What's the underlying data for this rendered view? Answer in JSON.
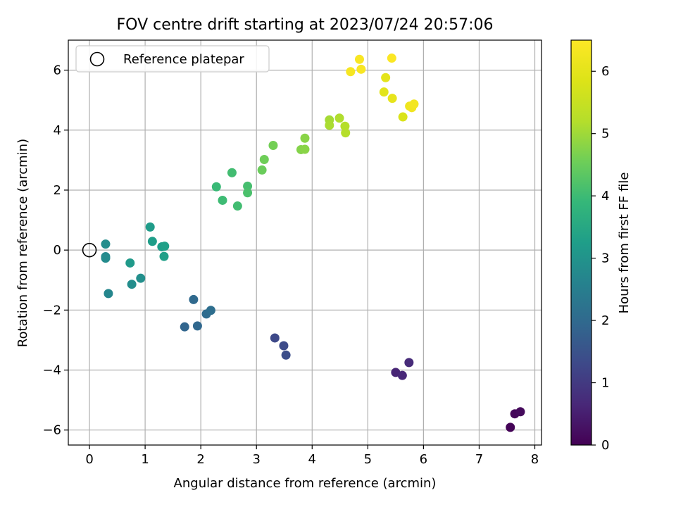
{
  "chart_data": {
    "type": "scatter",
    "title": "FOV centre drift starting at 2023/07/24 20:57:06",
    "xlabel": "Angular distance from reference (arcmin)",
    "ylabel": "Rotation from reference (arcmin)",
    "xlim": [
      -0.38,
      8.12
    ],
    "ylim": [
      -6.5,
      7.0
    ],
    "xticks": [
      0,
      1,
      2,
      3,
      4,
      5,
      6,
      7,
      8
    ],
    "yticks": [
      -6,
      -4,
      -2,
      0,
      2,
      4,
      6
    ],
    "xtick_labels": [
      "0",
      "1",
      "2",
      "3",
      "4",
      "5",
      "6",
      "7",
      "8"
    ],
    "ytick_labels": [
      "−6",
      "−4",
      "−2",
      "0",
      "2",
      "4",
      "6"
    ],
    "grid": true,
    "legend": {
      "position": "top-left",
      "entries": [
        {
          "label": "Reference platepar",
          "marker": "open-circle",
          "color": "#000000"
        }
      ]
    },
    "colorbar": {
      "label": "Hours from first FF file",
      "colormap": "viridis",
      "range": [
        0,
        6.5
      ],
      "ticks": [
        0,
        1,
        2,
        3,
        4,
        5,
        6
      ],
      "tick_labels": [
        "0",
        "1",
        "2",
        "3",
        "4",
        "5",
        "6"
      ]
    },
    "reference_point": {
      "x": 0,
      "y": 0
    },
    "points": [
      {
        "x": 7.56,
        "y": -5.91,
        "hours": 0.05
      },
      {
        "x": 7.64,
        "y": -5.46,
        "hours": 0.1
      },
      {
        "x": 7.74,
        "y": -5.39,
        "hours": 0.15
      },
      {
        "x": 5.5,
        "y": -4.08,
        "hours": 0.6
      },
      {
        "x": 5.62,
        "y": -4.18,
        "hours": 0.65
      },
      {
        "x": 5.74,
        "y": -3.75,
        "hours": 0.7
      },
      {
        "x": 3.33,
        "y": -2.93,
        "hours": 1.3
      },
      {
        "x": 3.49,
        "y": -3.19,
        "hours": 1.35
      },
      {
        "x": 3.53,
        "y": -3.5,
        "hours": 1.4
      },
      {
        "x": 1.71,
        "y": -2.56,
        "hours": 1.9
      },
      {
        "x": 1.94,
        "y": -2.53,
        "hours": 1.95
      },
      {
        "x": 1.87,
        "y": -1.65,
        "hours": 2.0
      },
      {
        "x": 2.1,
        "y": -2.13,
        "hours": 2.05
      },
      {
        "x": 2.18,
        "y": -2.01,
        "hours": 2.1
      },
      {
        "x": 0.34,
        "y": -1.45,
        "hours": 2.7
      },
      {
        "x": 0.29,
        "y": -0.22,
        "hours": 2.75
      },
      {
        "x": 0.29,
        "y": -0.27,
        "hours": 2.8
      },
      {
        "x": 0.29,
        "y": 0.2,
        "hours": 2.85
      },
      {
        "x": 0.76,
        "y": -1.14,
        "hours": 2.85
      },
      {
        "x": 0.92,
        "y": -0.94,
        "hours": 2.9
      },
      {
        "x": 0.73,
        "y": -0.43,
        "hours": 3.15
      },
      {
        "x": 1.09,
        "y": 0.77,
        "hours": 3.2
      },
      {
        "x": 1.13,
        "y": 0.29,
        "hours": 3.25
      },
      {
        "x": 1.3,
        "y": 0.11,
        "hours": 3.25
      },
      {
        "x": 1.35,
        "y": 0.13,
        "hours": 3.3
      },
      {
        "x": 1.34,
        "y": -0.21,
        "hours": 3.3
      },
      {
        "x": 2.28,
        "y": 2.11,
        "hours": 3.95
      },
      {
        "x": 2.39,
        "y": 1.66,
        "hours": 4.0
      },
      {
        "x": 2.56,
        "y": 2.58,
        "hours": 4.05
      },
      {
        "x": 2.66,
        "y": 1.47,
        "hours": 4.05
      },
      {
        "x": 2.84,
        "y": 2.13,
        "hours": 4.1
      },
      {
        "x": 2.84,
        "y": 1.91,
        "hours": 4.15
      },
      {
        "x": 3.1,
        "y": 2.67,
        "hours": 4.5
      },
      {
        "x": 3.14,
        "y": 3.02,
        "hours": 4.55
      },
      {
        "x": 3.3,
        "y": 3.49,
        "hours": 4.6
      },
      {
        "x": 3.8,
        "y": 3.35,
        "hours": 4.75
      },
      {
        "x": 3.87,
        "y": 3.36,
        "hours": 4.8
      },
      {
        "x": 3.87,
        "y": 3.73,
        "hours": 4.8
      },
      {
        "x": 4.31,
        "y": 4.34,
        "hours": 5.05
      },
      {
        "x": 4.31,
        "y": 4.16,
        "hours": 5.1
      },
      {
        "x": 4.49,
        "y": 4.4,
        "hours": 5.15
      },
      {
        "x": 4.59,
        "y": 4.13,
        "hours": 5.2
      },
      {
        "x": 4.6,
        "y": 3.91,
        "hours": 5.2
      },
      {
        "x": 4.69,
        "y": 5.95,
        "hours": 6.35
      },
      {
        "x": 4.85,
        "y": 6.36,
        "hours": 6.4
      },
      {
        "x": 4.88,
        "y": 6.03,
        "hours": 6.4
      },
      {
        "x": 5.29,
        "y": 5.27,
        "hours": 5.95
      },
      {
        "x": 5.32,
        "y": 5.75,
        "hours": 6.0
      },
      {
        "x": 5.43,
        "y": 6.4,
        "hours": 6.45
      },
      {
        "x": 5.44,
        "y": 5.06,
        "hours": 6.05
      },
      {
        "x": 5.63,
        "y": 4.44,
        "hours": 5.8
      },
      {
        "x": 5.75,
        "y": 4.8,
        "hours": 6.2
      },
      {
        "x": 5.79,
        "y": 4.75,
        "hours": 6.25
      },
      {
        "x": 5.83,
        "y": 4.87,
        "hours": 6.3
      }
    ]
  }
}
